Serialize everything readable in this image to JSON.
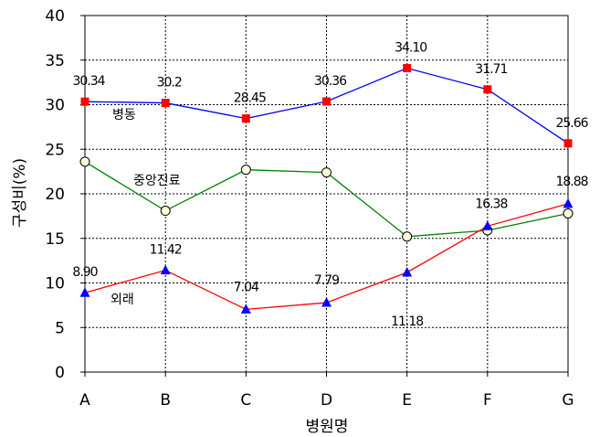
{
  "chart_data": {
    "type": "line",
    "title": "",
    "xlabel": "병원명",
    "ylabel": "구성비(%)",
    "categories": [
      "A",
      "B",
      "C",
      "D",
      "E",
      "F",
      "G"
    ],
    "ylim": [
      0,
      40
    ],
    "yticks": [
      0,
      5,
      10,
      15,
      20,
      25,
      30,
      35,
      40
    ],
    "grid": true,
    "legend": "none",
    "series": [
      {
        "name": "병동",
        "values": [
          30.34,
          30.2,
          28.45,
          30.36,
          34.1,
          31.71,
          25.66
        ],
        "value_labels": [
          "30.34",
          "30.2",
          "28.45",
          "30.36",
          "34.10",
          "31.71",
          "25.66"
        ],
        "color": "#0000ff",
        "marker": "square",
        "marker_color": "#ff0000"
      },
      {
        "name": "중앙진료",
        "values": [
          23.6,
          18.1,
          22.7,
          22.4,
          15.2,
          15.9,
          17.8
        ],
        "value_labels": [],
        "color": "#008000",
        "marker": "circle",
        "marker_color": "#ffffe0"
      },
      {
        "name": "외래",
        "values": [
          8.9,
          11.42,
          7.04,
          7.79,
          11.18,
          16.38,
          18.88
        ],
        "value_labels": [
          "8.90",
          "11.42",
          "7.04",
          "7.79",
          "11.18",
          "16.38",
          "18.88"
        ],
        "color": "#ff0000",
        "marker": "triangle",
        "marker_color": "#0000ff"
      }
    ]
  }
}
